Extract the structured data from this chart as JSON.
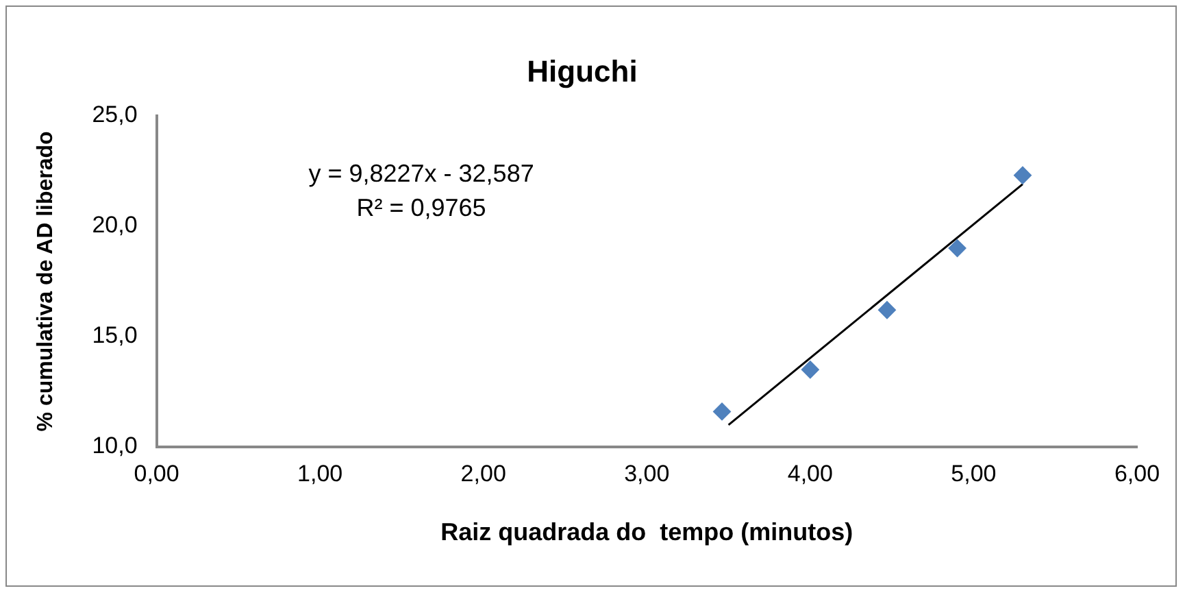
{
  "chart_data": {
    "type": "scatter",
    "title": "Higuchi",
    "xlabel": "Raiz quadrada do  tempo (minutos)",
    "ylabel": "% cumulativa de AD liberado",
    "series": [
      {
        "color": "#4f81bd",
        "marker": "diamond",
        "x": [
          3.46,
          4.0,
          4.47,
          4.9,
          5.3
        ],
        "values": [
          11.6,
          13.5,
          16.2,
          19.0,
          22.3
        ]
      },
      {
        "type": "line",
        "color": "#000000",
        "marker": "none",
        "x": [
          3.5,
          5.3
        ],
        "values": [
          11.0,
          21.9
        ]
      }
    ],
    "xlim": [
      0,
      6
    ],
    "xticks": [
      {
        "value": 0,
        "label": "0,00"
      },
      {
        "value": 1,
        "label": "1,00"
      },
      {
        "value": 2,
        "label": "2,00"
      },
      {
        "value": 3,
        "label": "3,00"
      },
      {
        "value": 4,
        "label": "4,00"
      },
      {
        "value": 5,
        "label": "5,00"
      },
      {
        "value": 6,
        "label": "6,00"
      }
    ],
    "ylim": [
      10,
      25
    ],
    "yticks": [
      {
        "value": 10,
        "label": "10,0"
      },
      {
        "value": 15,
        "label": "15,0"
      },
      {
        "value": 20,
        "label": "20,0"
      },
      {
        "value": 25,
        "label": "25,0"
      }
    ],
    "annotations": [
      "y = 9,8227x - 32,587",
      "R² = 0,9765"
    ],
    "grid": false,
    "legend": false
  }
}
